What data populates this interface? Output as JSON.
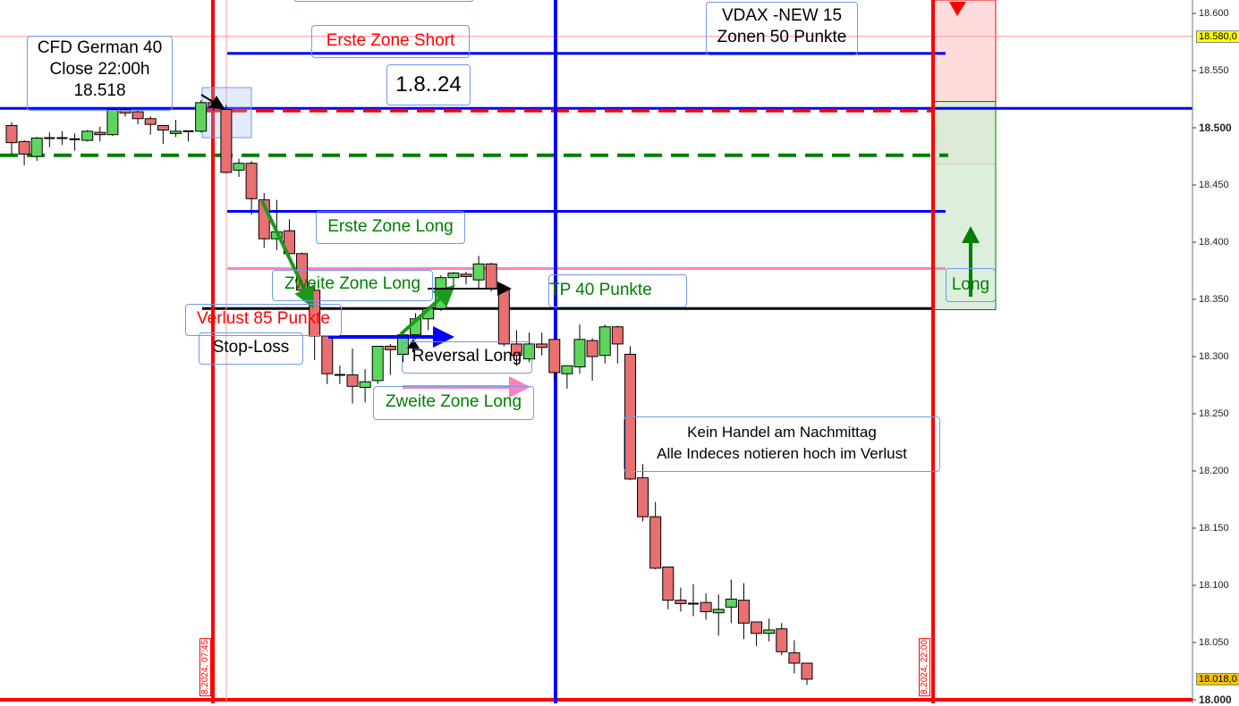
{
  "chart_data": {
    "type": "candlestick",
    "ylim": [
      18000,
      18610
    ],
    "y_ticks": [
      "18.600",
      "18.550",
      "18.500",
      "18.450",
      "18.400",
      "18.350",
      "18.300",
      "18.250",
      "18.200",
      "18.150",
      "18.100",
      "18.050",
      "18.000"
    ],
    "y_tick_values": [
      18600,
      18550,
      18500,
      18450,
      18400,
      18350,
      18300,
      18250,
      18200,
      18150,
      18100,
      18050,
      18000
    ],
    "price_tags": [
      {
        "text": "18.580,0",
        "value": 18580,
        "color": "#ffff00"
      },
      {
        "text": "18.018,0",
        "value": 18018,
        "color": "#f5c400"
      }
    ],
    "time_labels": [
      {
        "text": "8.2024, 07:45"
      },
      {
        "text": "8.2024, 22:00"
      }
    ],
    "candles": [
      [
        18502,
        18505,
        18477,
        18487
      ],
      [
        18488,
        18489,
        18467,
        18477
      ],
      [
        18475,
        18492,
        18471,
        18491
      ],
      [
        18490,
        18496,
        18483,
        18491
      ],
      [
        18491,
        18497,
        18485,
        18491
      ],
      [
        18490,
        18495,
        18480,
        18490
      ],
      [
        18489,
        18498,
        18488,
        18497
      ],
      [
        18496,
        18501,
        18488,
        18494
      ],
      [
        18494,
        18517,
        18493,
        18516
      ],
      [
        18516,
        18518,
        18510,
        18513
      ],
      [
        18514,
        18516,
        18503,
        18508
      ],
      [
        18508,
        18510,
        18494,
        18503
      ],
      [
        18502,
        18502,
        18486,
        18498
      ],
      [
        18495,
        18507,
        18492,
        18497
      ],
      [
        18497,
        18497,
        18488,
        18497
      ],
      [
        18497,
        18524,
        18496,
        18522
      ],
      [
        18522,
        18524,
        18515,
        18518
      ],
      [
        18516,
        18520,
        18460,
        18461
      ],
      [
        18463,
        18473,
        18457,
        18469
      ],
      [
        18469,
        18471,
        18424,
        18438
      ],
      [
        18437,
        18443,
        18395,
        18403
      ],
      [
        18403,
        18437,
        18393,
        18409
      ],
      [
        18410,
        18420,
        18385,
        18390
      ],
      [
        18390,
        18391,
        18355,
        18358
      ],
      [
        18358,
        18363,
        18297,
        18318
      ],
      [
        18318,
        18318,
        18276,
        18285
      ],
      [
        18284,
        18292,
        18276,
        18284
      ],
      [
        18284,
        18307,
        18259,
        18274
      ],
      [
        18273,
        18289,
        18260,
        18278
      ],
      [
        18279,
        18309,
        18276,
        18309
      ],
      [
        18309,
        18311,
        18284,
        18306
      ],
      [
        18302,
        18323,
        18295,
        18319
      ],
      [
        18319,
        18338,
        18315,
        18333
      ],
      [
        18333,
        18344,
        18323,
        18342
      ],
      [
        18342,
        18371,
        18340,
        18369
      ],
      [
        18369,
        18374,
        18359,
        18373
      ],
      [
        18372,
        18374,
        18363,
        18370
      ],
      [
        18367,
        18388,
        18360,
        18381
      ],
      [
        18381,
        18382,
        18357,
        18359
      ],
      [
        18359,
        18363,
        18309,
        18311
      ],
      [
        18311,
        18323,
        18292,
        18301
      ],
      [
        18298,
        18321,
        18295,
        18311
      ],
      [
        18311,
        18321,
        18301,
        18308
      ],
      [
        18315,
        18315,
        18280,
        18286
      ],
      [
        18285,
        18292,
        18272,
        18292
      ],
      [
        18291,
        18328,
        18285,
        18315
      ],
      [
        18314,
        18316,
        18279,
        18300
      ],
      [
        18301,
        18328,
        18294,
        18326
      ],
      [
        18326,
        18327,
        18294,
        18311
      ],
      [
        18302,
        18309,
        18192,
        18193
      ],
      [
        18194,
        18206,
        18156,
        18160
      ],
      [
        18160,
        18173,
        18114,
        18115
      ],
      [
        18116,
        18116,
        18079,
        18087
      ],
      [
        18087,
        18098,
        18077,
        18084
      ],
      [
        18084,
        18101,
        18073,
        18084
      ],
      [
        18085,
        18093,
        18070,
        18077
      ],
      [
        18076,
        18092,
        18056,
        18079
      ],
      [
        18081,
        18105,
        18067,
        18088
      ],
      [
        18087,
        18102,
        18053,
        18067
      ],
      [
        18068,
        18068,
        18047,
        18058
      ],
      [
        18058,
        18071,
        18051,
        18061
      ],
      [
        18062,
        18067,
        18039,
        18042
      ],
      [
        18041,
        18052,
        18023,
        18032
      ],
      [
        18032,
        18032,
        18013,
        18018
      ]
    ],
    "candle_fields": [
      "open",
      "high",
      "low",
      "close"
    ],
    "horizontal_lines": [
      {
        "name": "zone-short-1",
        "price": 18565,
        "color": "#0000ff",
        "style": "solid"
      },
      {
        "name": "blue-level",
        "price": 18517,
        "color": "#0000ff",
        "style": "solid"
      },
      {
        "name": "red-dashed",
        "price": 18515,
        "color": "#ff0000",
        "style": "dashed"
      },
      {
        "name": "green-dashed",
        "price": 18476,
        "color": "#008000",
        "style": "dashed"
      },
      {
        "name": "zone-long-1",
        "price": 18427,
        "color": "#0000ff",
        "style": "solid"
      },
      {
        "name": "pink-level",
        "price": 18377,
        "color": "#ff80c0",
        "style": "solid"
      },
      {
        "name": "tp-level",
        "price": 18342,
        "color": "#000000",
        "style": "solid"
      },
      {
        "name": "base-level",
        "price": 18000,
        "color": "#ff0000",
        "style": "solid"
      }
    ],
    "zones": [
      {
        "name": "short-zone",
        "from": 18468,
        "to": 18620,
        "color": "#ffd6d6"
      },
      {
        "name": "long-zone",
        "from": 18341,
        "to": 18523,
        "color": "#d6ecd6"
      }
    ],
    "colors": {
      "up": "#5ed65e",
      "down": "#e87070",
      "grid": "#f0f0f0"
    }
  },
  "annotations": {
    "cfd_title": "CFD German 40",
    "cfd_close": "Close 22:00h",
    "cfd_value": "18.518",
    "erste_zone_short": "Erste Zone Short",
    "date": "1.8..24",
    "vdax_1": "VDAX -NEW 15",
    "vdax_2": "Zonen 50 Punkte",
    "erste_zone_long": "Erste Zone Long",
    "zweite_zone_long_1": "Zweite Zone Long",
    "tp": "TP  40 Punkte",
    "verlust": "Verlust 85 Punkte",
    "stop_loss": "Stop-Loss",
    "reversal_long": "Reversal Long",
    "zweite_zone_long_2": "Zweite Zone Long",
    "kein_handel_1": "Kein Handel am Nachmittag",
    "kein_handel_2": "Alle Indeces notieren hoch im Verlust",
    "long": "Long"
  }
}
